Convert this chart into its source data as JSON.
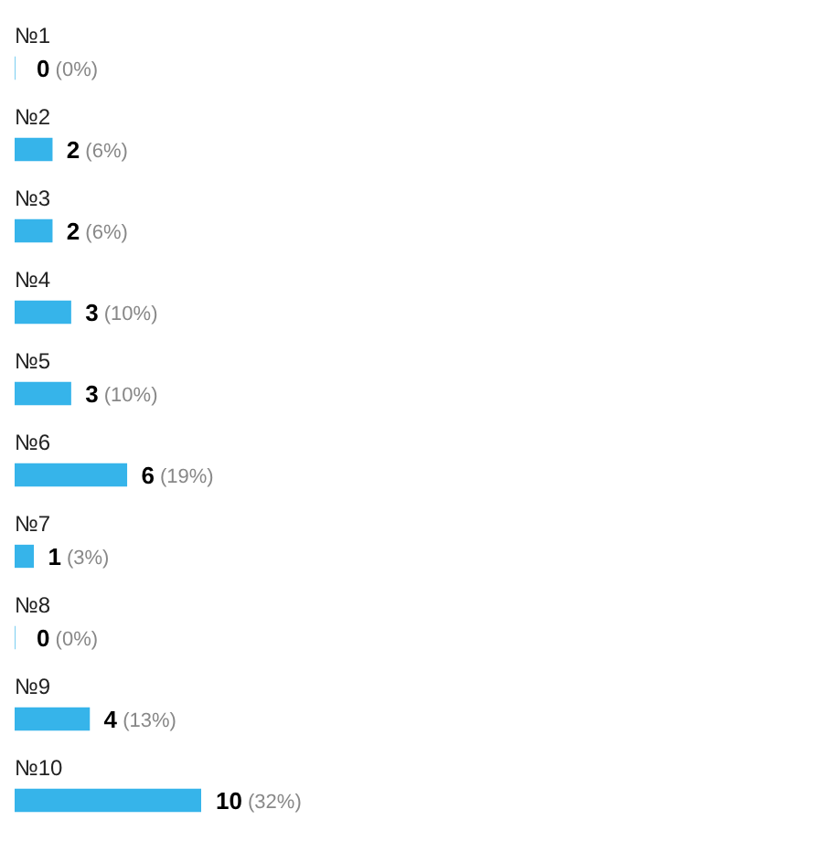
{
  "chart_data": {
    "type": "bar",
    "orientation": "horizontal",
    "categories": [
      "№1",
      "№2",
      "№3",
      "№4",
      "№5",
      "№6",
      "№7",
      "№8",
      "№9",
      "№10"
    ],
    "values": [
      0,
      2,
      2,
      3,
      3,
      6,
      1,
      0,
      4,
      10
    ],
    "value_labels": [
      "0 (0%)",
      "2 (6%)",
      "2 (6%)",
      "3 (10%)",
      "3 (10%)",
      "6 (19%)",
      "1 (3%)",
      "0 (0%)",
      "4 (13%)",
      "10 (32%)"
    ],
    "color": "#36b4ea",
    "legend": false
  }
}
